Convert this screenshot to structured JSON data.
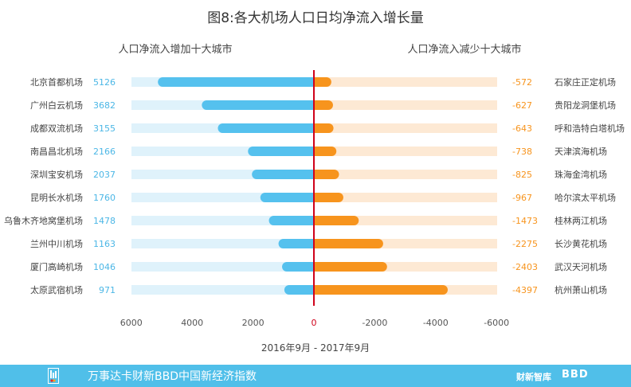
{
  "title": "图8:各大机场人口日均净流入增长量",
  "subtitles": {
    "left": "人口净流入增加十大城市",
    "right": "人口净流入减少十大城市"
  },
  "date_range": "2016年9月 - 2017年9月",
  "footer": {
    "text": "万事达卡财新BBD中国新经济指数",
    "brand1": "财新智库",
    "brand2": "BBD"
  },
  "colors": {
    "left_bar": "#55c1ee",
    "left_track": "#dff2fb",
    "right_bar": "#f7941d",
    "right_track": "#fde9d4",
    "axis": "#d0021b",
    "left_text": "#4cb7e6",
    "right_text": "#f7941d",
    "footer_bg": "#50bfe9"
  },
  "chart_data": {
    "type": "bar",
    "orientation": "diverging-horizontal",
    "title": "图8:各大机场人口日均净流入增长量",
    "xlabel": "2016年9月 - 2017年9月",
    "x_ticks": [
      "6000",
      "4000",
      "2000",
      "0",
      "-2000",
      "-4000",
      "-6000"
    ],
    "x_tick_values": [
      6000,
      4000,
      2000,
      0,
      -2000,
      -4000,
      -6000
    ],
    "xlim": [
      6000,
      -6000
    ],
    "left_series": {
      "name": "人口净流入增加十大城市",
      "categories": [
        "北京首都机场",
        "广州白云机场",
        "成都双流机场",
        "南昌昌北机场",
        "深圳宝安机场",
        "昆明长水机场",
        "乌鲁木齐地窝堡机场",
        "兰州中川机场",
        "厦门高崎机场",
        "太原武宿机场"
      ],
      "values": [
        5126,
        3682,
        3155,
        2166,
        2037,
        1760,
        1478,
        1163,
        1046,
        971
      ],
      "labels": [
        "5126",
        "3682",
        "3155",
        "2166",
        "2037",
        "1760",
        "1478",
        "1163",
        "1046",
        "971"
      ]
    },
    "right_series": {
      "name": "人口净流入减少十大城市",
      "categories": [
        "石家庄正定机场",
        "贵阳龙洞堡机场",
        "呼和浩特白塔机场",
        "天津滨海机场",
        "珠海金湾机场",
        "哈尔滨太平机场",
        "桂林两江机场",
        "长沙黄花机场",
        "武汉天河机场",
        "杭州萧山机场"
      ],
      "values": [
        -572,
        -627,
        -643,
        -738,
        -825,
        -967,
        -1473,
        -2275,
        -2403,
        -4397
      ],
      "labels": [
        "-572",
        "-627",
        "-643",
        "-738",
        "-825",
        "-967",
        "-1473",
        "-2275",
        "-2403",
        "-4397"
      ]
    }
  }
}
